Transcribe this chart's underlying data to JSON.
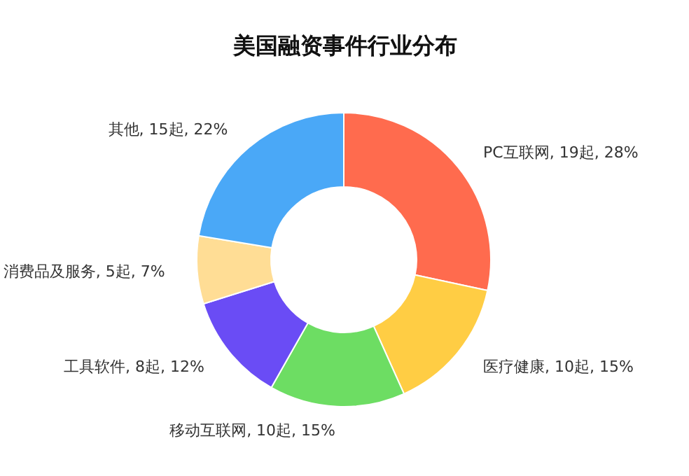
{
  "chart_data": {
    "type": "donut",
    "title": "美国融资事件行业分布",
    "categories": [
      "PC互联网",
      "医疗健康",
      "移动互联网",
      "工具软件",
      "消费品及服务",
      "其他"
    ],
    "values": [
      19,
      10,
      10,
      8,
      5,
      15
    ],
    "value_labels": [
      "19起, 28%",
      "10起, 15%",
      "10起, 15%",
      "8起, 12%",
      "5起, 7%",
      "15起, 22%"
    ],
    "colors": [
      "#ff6b4e",
      "#ffcd44",
      "#6ddd63",
      "#6a4cf5",
      "#ffdd95",
      "#4aa8f7"
    ],
    "legend": false
  }
}
